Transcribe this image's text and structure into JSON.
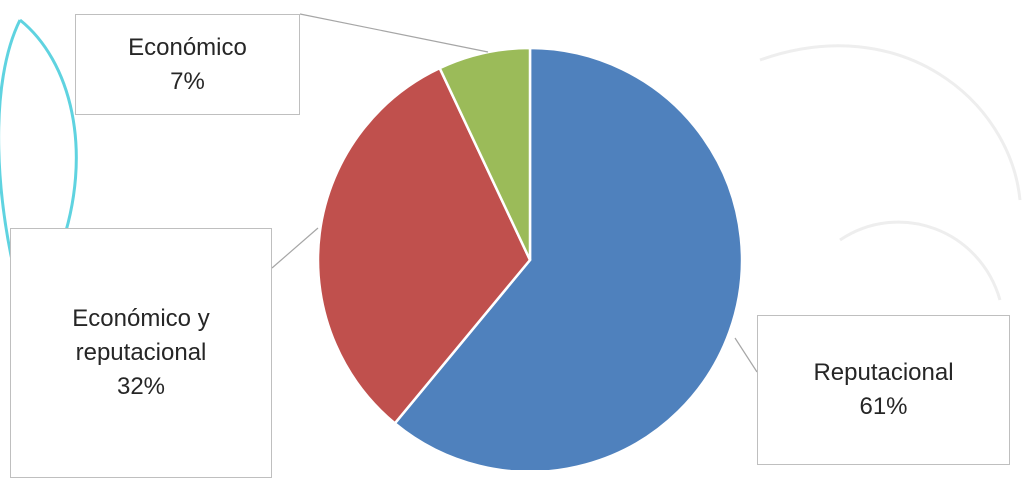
{
  "chart_data": {
    "type": "pie",
    "categories": [
      "Reputacional",
      "Económico y reputacional",
      "Económico"
    ],
    "values": [
      61,
      32,
      7
    ],
    "value_labels": [
      "61%",
      "32%",
      "7%"
    ],
    "colors": [
      "#4f81bd",
      "#c0504d",
      "#9bbb59"
    ]
  }
}
